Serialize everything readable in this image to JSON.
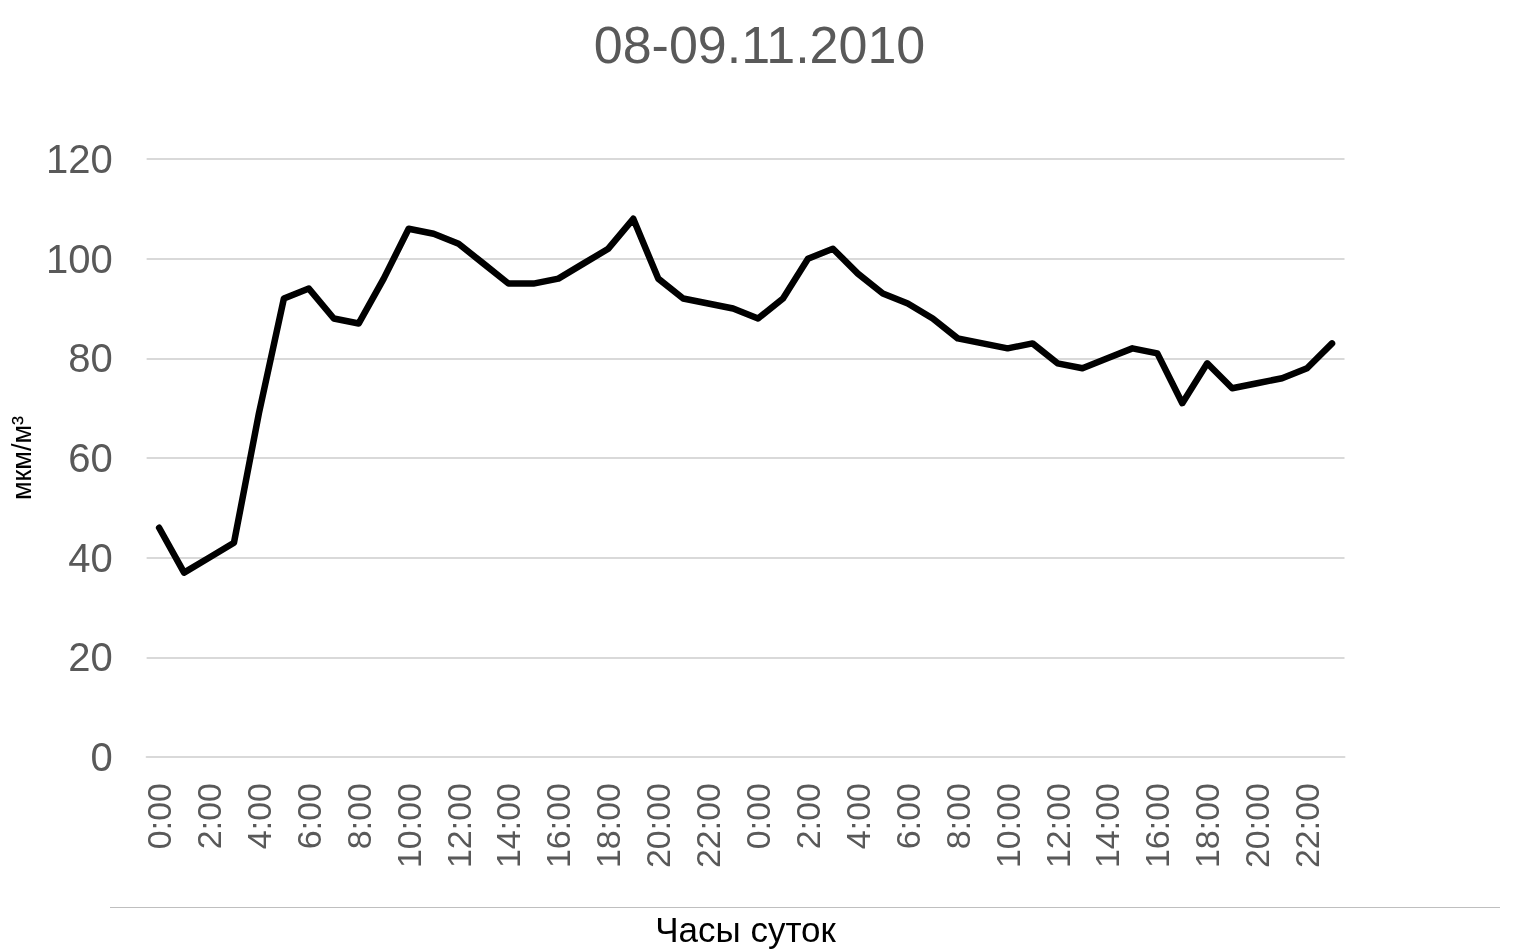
{
  "chart_data": {
    "type": "line",
    "title": "08-09.11.2010",
    "xlabel": "Часы суток",
    "ylabel": "мкм/м³",
    "categories": [
      "0:00",
      null,
      "2:00",
      null,
      "4:00",
      null,
      "6:00",
      null,
      "8:00",
      null,
      "10:00",
      null,
      "12:00",
      null,
      "14:00",
      null,
      "16:00",
      null,
      "18:00",
      null,
      "20:00",
      null,
      "22:00",
      null,
      "0:00",
      null,
      "2:00",
      null,
      "4:00",
      null,
      "6:00",
      null,
      "8:00",
      null,
      "10:00",
      null,
      "12:00",
      null,
      "14:00",
      null,
      "16:00",
      null,
      "18:00",
      null,
      "20:00",
      null,
      "22:00",
      null
    ],
    "values": [
      46,
      37,
      40,
      43,
      69,
      92,
      94,
      88,
      87,
      96,
      106,
      105,
      103,
      99,
      95,
      95,
      96,
      99,
      102,
      108,
      96,
      92,
      91,
      90,
      88,
      92,
      100,
      102,
      97,
      93,
      91,
      88,
      84,
      83,
      82,
      83,
      79,
      78,
      80,
      82,
      81,
      71,
      79,
      74,
      75,
      76,
      78,
      83
    ],
    "color": "#000000",
    "ylim": [
      0,
      120
    ],
    "yticks": [
      0,
      20,
      40,
      60,
      80,
      100,
      120
    ],
    "grid": "y",
    "marker": "none",
    "line_style": "solid"
  }
}
